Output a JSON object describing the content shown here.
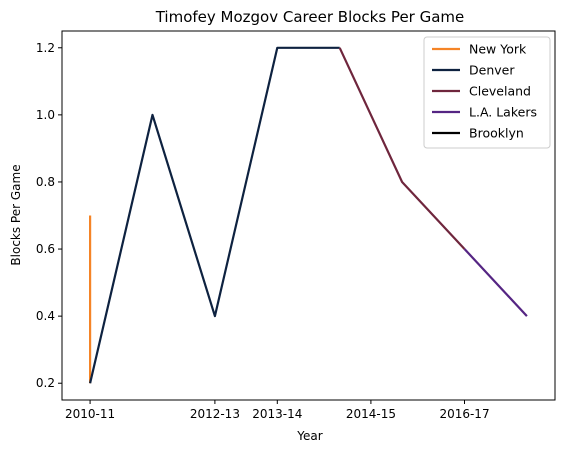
{
  "chart_data": {
    "type": "line",
    "title": "Timofey Mozgov Career Blocks Per Game",
    "xlabel": "Year",
    "ylabel": "Blocks Per Game",
    "x_ticks": [
      {
        "label": "2010-11",
        "x": 0
      },
      {
        "label": "2012-13",
        "x": 2
      },
      {
        "label": "2013-14",
        "x": 3
      },
      {
        "label": "2014-15",
        "x": 4.5
      },
      {
        "label": "2016-17",
        "x": 6
      }
    ],
    "y_ticks": [
      0.2,
      0.4,
      0.6,
      0.8,
      1.0,
      1.2
    ],
    "xlim": [
      -0.45,
      7.45
    ],
    "ylim": [
      0.15,
      1.25
    ],
    "grid": false,
    "legend_position": "top-right",
    "series": [
      {
        "name": "New York",
        "color": "#F58426",
        "x": [
          0,
          0
        ],
        "y": [
          0.7,
          0.2
        ]
      },
      {
        "name": "Denver",
        "color": "#0E2240",
        "x": [
          0,
          1,
          2,
          3,
          4
        ],
        "y": [
          0.2,
          1.0,
          0.4,
          1.2,
          1.2
        ]
      },
      {
        "name": "Cleveland",
        "color": "#6F263D",
        "x": [
          4,
          5,
          6
        ],
        "y": [
          1.2,
          0.8,
          0.6
        ]
      },
      {
        "name": "L.A. Lakers",
        "color": "#552583",
        "x": [
          6,
          7
        ],
        "y": [
          0.6,
          0.4
        ]
      },
      {
        "name": "Brooklyn",
        "color": "#000000",
        "x": [],
        "y": []
      }
    ]
  }
}
